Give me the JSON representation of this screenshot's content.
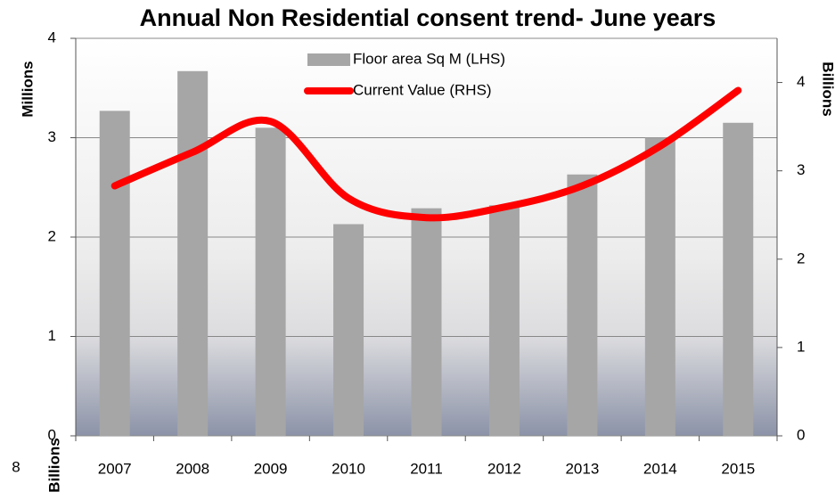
{
  "chart_data": {
    "type": "bar_line",
    "title": "Annual Non Residential consent trend- June years",
    "y_label": "Millions",
    "y2_label": "Billions",
    "footer_texts": [
      "8",
      "Billions"
    ],
    "categories": [
      "2007",
      "2008",
      "2009",
      "2010",
      "2011",
      "2012",
      "2013",
      "2014",
      "2015"
    ],
    "series": [
      {
        "name": "Floor area Sq M (LHS)",
        "type": "bar",
        "color": "#a6a6a6",
        "values": [
          3.27,
          3.67,
          3.1,
          2.13,
          2.29,
          2.32,
          2.63,
          3.0,
          3.15
        ]
      },
      {
        "name": "Current Value (RHS)",
        "type": "line",
        "axis": "y2",
        "color": "#ff0000",
        "values": [
          2.83,
          3.21,
          3.56,
          2.69,
          2.47,
          2.59,
          2.83,
          3.28,
          3.91
        ]
      }
    ],
    "ylim": [
      0,
      4
    ],
    "yticks": [
      0,
      1,
      2,
      3,
      4
    ],
    "y2lim": [
      0,
      4.5
    ],
    "y2ticks": [
      0,
      1,
      2,
      3,
      4
    ],
    "grid": true,
    "legend": "top"
  }
}
